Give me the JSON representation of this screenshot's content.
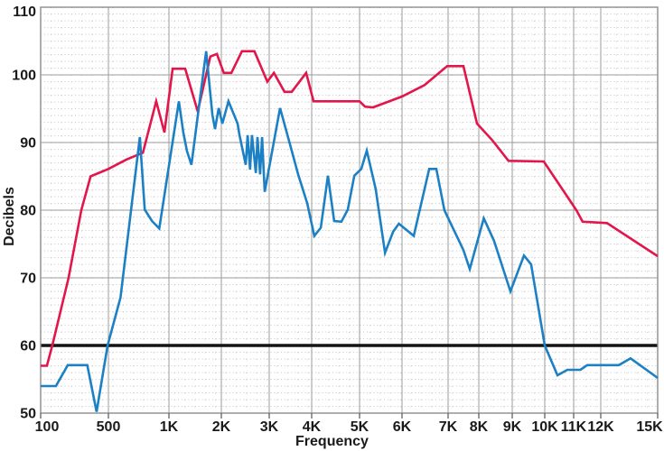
{
  "chart_data": {
    "type": "line",
    "title": "",
    "xlabel": "Frequency",
    "ylabel": "Decibels",
    "ylim": [
      50,
      110
    ],
    "grid": "major solid gray lines with fine dotted minor grid",
    "legend": "none",
    "x_scale_note": "irregular compressed frequency scale as drawn, ticks 100 Hz to 15 kHz",
    "x_ticks": [
      {
        "freq": 100,
        "label": "100"
      },
      {
        "freq": 500,
        "label": "500"
      },
      {
        "freq": 1000,
        "label": "1K"
      },
      {
        "freq": 2000,
        "label": "2K"
      },
      {
        "freq": 3000,
        "label": "3K"
      },
      {
        "freq": 4000,
        "label": "4K"
      },
      {
        "freq": 5000,
        "label": "5K"
      },
      {
        "freq": 6000,
        "label": "6K"
      },
      {
        "freq": 7000,
        "label": "7K"
      },
      {
        "freq": 8000,
        "label": "8K"
      },
      {
        "freq": 9000,
        "label": "9K"
      },
      {
        "freq": 10000,
        "label": "10K"
      },
      {
        "freq": 11000,
        "label": "11K"
      },
      {
        "freq": 12000,
        "label": "12K"
      },
      {
        "freq": 15000,
        "label": "15K"
      }
    ],
    "y_ticks": [
      {
        "db": 110,
        "label": "110"
      },
      {
        "db": 100,
        "label": "100"
      },
      {
        "db": 90,
        "label": "90"
      },
      {
        "db": 80,
        "label": "80"
      },
      {
        "db": 70,
        "label": "70"
      },
      {
        "db": 60,
        "label": "60"
      },
      {
        "db": 50,
        "label": "50"
      }
    ],
    "reference_line": {
      "db": 60,
      "color": "#141414"
    },
    "colors": {
      "red_series": "#e2164a",
      "blue_series": "#1b80c4",
      "major_grid": "#9b9b9b",
      "minor_grid": "#c9c9c9",
      "border": "#8c8c8c",
      "text": "#1a1a1a"
    },
    "series": [
      {
        "name": "upper-red-curve",
        "color": "#e2164a",
        "points": [
          [
            100,
            57
          ],
          [
            137,
            57
          ],
          [
            169,
            60
          ],
          [
            265,
            70
          ],
          [
            340,
            80
          ],
          [
            395,
            85
          ],
          [
            500,
            86.1
          ],
          [
            650,
            87.5
          ],
          [
            785,
            88.5
          ],
          [
            895,
            96.1
          ],
          [
            963,
            91.5
          ],
          [
            1070,
            100.9
          ],
          [
            1310,
            100.9
          ],
          [
            1550,
            94.6
          ],
          [
            1790,
            102.7
          ],
          [
            1915,
            103.1
          ],
          [
            2050,
            100.3
          ],
          [
            2210,
            100.3
          ],
          [
            2430,
            103.5
          ],
          [
            2690,
            103.5
          ],
          [
            2960,
            99
          ],
          [
            3110,
            100.3
          ],
          [
            3360,
            97.5
          ],
          [
            3530,
            97.5
          ],
          [
            3870,
            100.3
          ],
          [
            4040,
            96.1
          ],
          [
            5000,
            96.1
          ],
          [
            5130,
            95.3
          ],
          [
            5320,
            95.2
          ],
          [
            6000,
            96.8
          ],
          [
            6490,
            98.5
          ],
          [
            6980,
            101.3
          ],
          [
            7500,
            101.3
          ],
          [
            7940,
            92.8
          ],
          [
            8410,
            90.3
          ],
          [
            8890,
            87.3
          ],
          [
            9970,
            87.2
          ],
          [
            11100,
            80
          ],
          [
            11330,
            78.3
          ],
          [
            12330,
            78.1
          ],
          [
            15000,
            73.2
          ]
        ]
      },
      {
        "name": "lower-blue-curve",
        "color": "#1b80c4",
        "points": [
          [
            100,
            54
          ],
          [
            190,
            54
          ],
          [
            260,
            57.1
          ],
          [
            375,
            57.1
          ],
          [
            430,
            50.2
          ],
          [
            495,
            60
          ],
          [
            600,
            67.1
          ],
          [
            760,
            90.8
          ],
          [
            800,
            80.1
          ],
          [
            860,
            78.4
          ],
          [
            920,
            77.3
          ],
          [
            1190,
            96.1
          ],
          [
            1275,
            91.5
          ],
          [
            1345,
            88.7
          ],
          [
            1430,
            86.7
          ],
          [
            1710,
            103.5
          ],
          [
            1830,
            94.1
          ],
          [
            1880,
            92
          ],
          [
            1950,
            95.1
          ],
          [
            2020,
            92.8
          ],
          [
            2150,
            96.1
          ],
          [
            2340,
            92.8
          ],
          [
            2380,
            91.1
          ],
          [
            2510,
            86.7
          ],
          [
            2550,
            91.1
          ],
          [
            2600,
            86
          ],
          [
            2640,
            91.1
          ],
          [
            2720,
            85.5
          ],
          [
            2755,
            90.8
          ],
          [
            2810,
            85.3
          ],
          [
            2850,
            90.8
          ],
          [
            2905,
            82.7
          ],
          [
            3255,
            95.1
          ],
          [
            3530,
            88.8
          ],
          [
            3680,
            85.3
          ],
          [
            3895,
            81
          ],
          [
            4055,
            76.2
          ],
          [
            4190,
            77.4
          ],
          [
            4340,
            85.1
          ],
          [
            4470,
            78.4
          ],
          [
            4620,
            78.3
          ],
          [
            4755,
            80.1
          ],
          [
            4890,
            85.1
          ],
          [
            5040,
            86.1
          ],
          [
            5170,
            88.8
          ],
          [
            5380,
            83.1
          ],
          [
            5600,
            73.7
          ],
          [
            5790,
            76.8
          ],
          [
            5925,
            78
          ],
          [
            6255,
            76.2
          ],
          [
            6590,
            86.1
          ],
          [
            6745,
            86.1
          ],
          [
            6920,
            80
          ],
          [
            7500,
            74.1
          ],
          [
            7705,
            71.3
          ],
          [
            8150,
            78.8
          ],
          [
            8455,
            75.5
          ],
          [
            8945,
            68
          ],
          [
            9360,
            73.3
          ],
          [
            9580,
            72
          ],
          [
            10000,
            60
          ],
          [
            10440,
            55.6
          ],
          [
            10780,
            56.4
          ],
          [
            11250,
            56.4
          ],
          [
            11500,
            57.1
          ],
          [
            12950,
            57.1
          ],
          [
            13570,
            58.1
          ],
          [
            15000,
            55.2
          ]
        ]
      }
    ]
  }
}
